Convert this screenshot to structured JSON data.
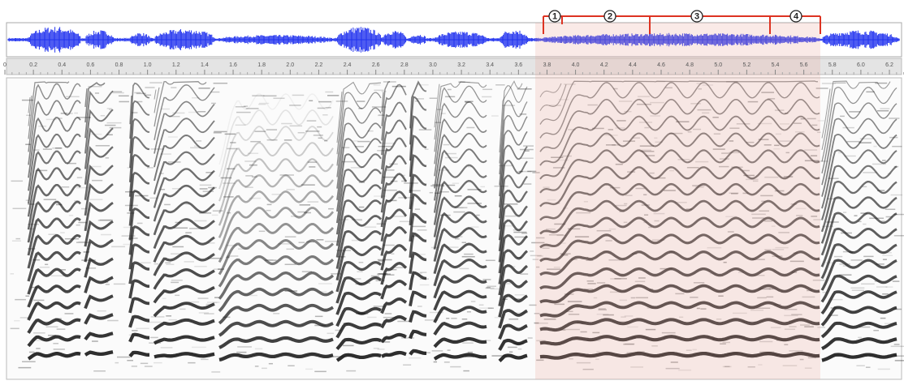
{
  "ruler": {
    "labels": [
      "0",
      "0.2",
      "0.4",
      "0.6",
      "0.8",
      "1.0",
      "1.2",
      "1.4",
      "1.6",
      "1.8",
      "2.0",
      "2.2",
      "2.4",
      "2.6",
      "2.8",
      "3.0",
      "3.2",
      "3.4",
      "3.6",
      "3.8",
      "4.0",
      "4.2",
      "4.4",
      "4.6",
      "4.8",
      "5.0",
      "5.2",
      "5.4",
      "5.6",
      "5.8",
      "6.0",
      "6.2"
    ]
  },
  "annotations": [
    "1",
    "2",
    "3",
    "4"
  ]
}
